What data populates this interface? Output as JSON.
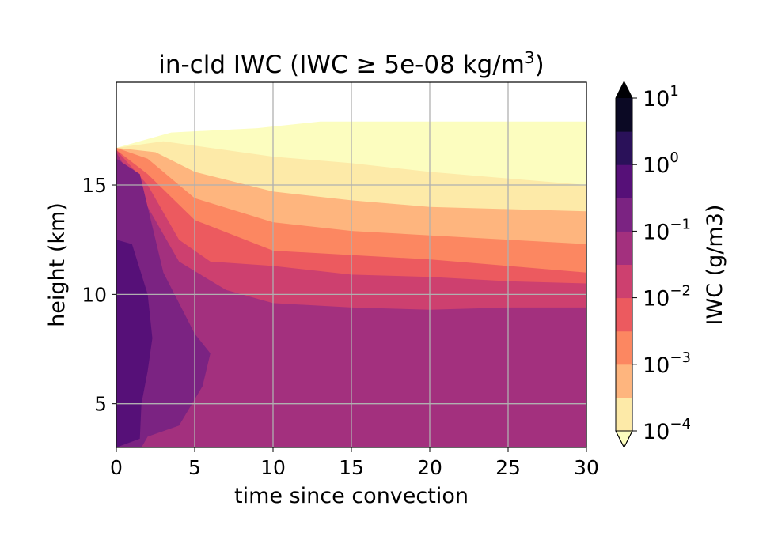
{
  "chart_data": {
    "type": "heatmap",
    "title_main": "in-cld IWC (IWC ≥ 5e-08 kg/m",
    "title_sup": "3",
    "title_close": ")",
    "xlabel": "time since convection",
    "ylabel": "height (km)",
    "xlim": [
      0,
      30
    ],
    "ylim": [
      3,
      19.7
    ],
    "x_ticks": [
      "0",
      "5",
      "10",
      "15",
      "20",
      "25",
      "30"
    ],
    "y_ticks": [
      "5",
      "10",
      "15"
    ],
    "grid": true,
    "colorbar": {
      "label": "IWC (g/m3)",
      "scale": "log",
      "extend": "both",
      "levels": [
        0.0001,
        0.000316,
        0.001,
        0.00316,
        0.01,
        0.0316,
        0.1,
        0.316,
        1,
        3.16,
        10
      ],
      "tick_base": "10",
      "tick_exponents": [
        "1",
        "0",
        "−1",
        "−2",
        "−3",
        "−4"
      ],
      "colors": [
        "#fdeaa8",
        "#feb57e",
        "#fc8761",
        "#ec5a5f",
        "#cd406f",
        "#a3307e",
        "#7b2382",
        "#561078",
        "#2a1159",
        "#0b0924"
      ],
      "over_color": "#000004",
      "under_color": "#fcfdbf"
    },
    "contour_regions": [
      {
        "color": "#fcfdbf",
        "level": ">=1e-4.5",
        "x": [
          0,
          3.5,
          9,
          13,
          18,
          25,
          30
        ],
        "top": [
          16.7,
          17.4,
          17.6,
          17.9,
          17.9,
          17.9,
          17.9
        ]
      },
      {
        "color": "#fdeaa8",
        "level": ">=1e-4",
        "x": [
          0,
          3,
          5,
          10,
          15,
          20,
          25,
          30
        ],
        "top": [
          16.7,
          17.0,
          16.8,
          16.3,
          16.0,
          15.6,
          15.3,
          15.0
        ]
      },
      {
        "color": "#feb57e",
        "level": ">=1e-3.5",
        "x": [
          0,
          2.5,
          5,
          10,
          15,
          20,
          25,
          30
        ],
        "top": [
          16.7,
          16.5,
          15.6,
          14.7,
          14.3,
          14.0,
          13.9,
          13.8
        ]
      },
      {
        "color": "#fc8761",
        "level": ">=1e-3",
        "x": [
          0,
          2,
          5,
          10,
          15,
          20,
          25,
          30
        ],
        "top": [
          16.7,
          16.2,
          14.4,
          13.3,
          12.9,
          12.7,
          12.5,
          12.3
        ]
      },
      {
        "color": "#ec5a5f",
        "level": ">=1e-2.5",
        "x": [
          0,
          2,
          5,
          10,
          15,
          20,
          25,
          30
        ],
        "top": [
          16.6,
          15.5,
          13.4,
          12.0,
          11.8,
          11.6,
          11.3,
          11.0
        ]
      },
      {
        "color": "#cd406f",
        "level": ">=1e-2",
        "x": [
          0,
          2,
          4,
          6,
          10,
          15,
          20,
          25,
          30
        ],
        "top": [
          16.6,
          15.0,
          12.5,
          11.5,
          11.3,
          10.9,
          10.8,
          10.6,
          10.5
        ]
      },
      {
        "color": "#a3307e",
        "level": ">=1e-1.5",
        "x": [
          0,
          2,
          4,
          7,
          10,
          15,
          20,
          25,
          30
        ],
        "top": [
          16.5,
          14.0,
          11.5,
          10.2,
          9.6,
          9.4,
          9.3,
          9.4,
          9.4
        ]
      },
      {
        "color": "#7b2382",
        "level": ">=1e-1",
        "x": [
          0,
          1.5,
          3,
          5,
          6,
          5.5,
          4,
          2,
          1.6,
          0
        ],
        "top": [
          16.2,
          15.5,
          11.0,
          8.2,
          7.3,
          5.8,
          4.0,
          3.5,
          3.0,
          3.0
        ]
      },
      {
        "color": "#561078",
        "level": ">=1e-0.5",
        "x": [
          0,
          1,
          2,
          2.3,
          2.0,
          1.6,
          1.5,
          0
        ],
        "top": [
          12.5,
          12.3,
          10.0,
          8.0,
          6.5,
          5.0,
          3.4,
          3.0
        ]
      }
    ]
  }
}
